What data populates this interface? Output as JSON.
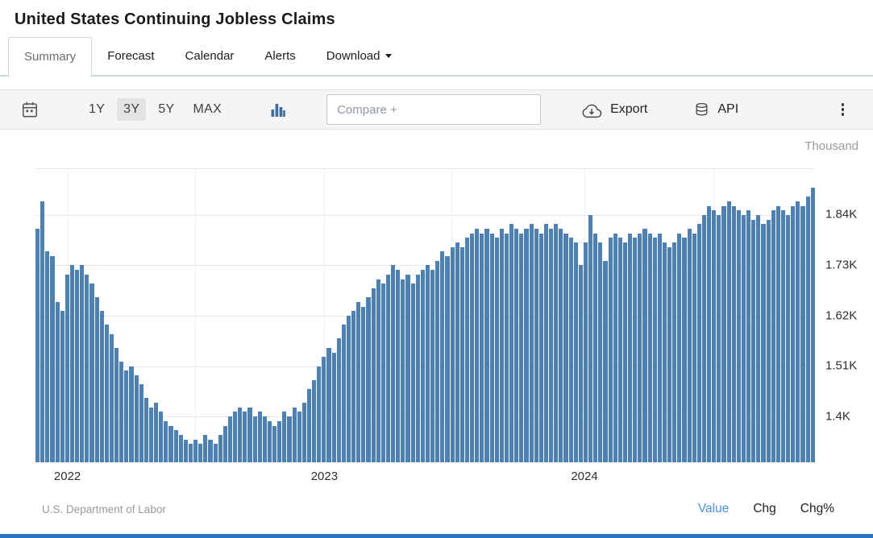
{
  "page": {
    "title": "United States Continuing Jobless Claims"
  },
  "tabs": [
    {
      "label": "Summary",
      "active": true
    },
    {
      "label": "Forecast",
      "active": false
    },
    {
      "label": "Calendar",
      "active": false
    },
    {
      "label": "Alerts",
      "active": false
    },
    {
      "label": "Download",
      "active": false,
      "has_caret": true
    }
  ],
  "toolbar": {
    "ranges": [
      {
        "label": "1Y",
        "selected": false
      },
      {
        "label": "3Y",
        "selected": true
      },
      {
        "label": "5Y",
        "selected": false
      },
      {
        "label": "MAX",
        "selected": false
      }
    ],
    "compare_placeholder": "Compare +",
    "export_label": "Export",
    "api_label": "API"
  },
  "icons": {
    "calendar": "calendar-icon",
    "chart_type": "bar-chart-type-icon",
    "export": "cloud-download-icon",
    "api": "database-icon",
    "menu": "kebab-menu-icon",
    "download_caret": "caret-down-icon"
  },
  "chart_data": {
    "type": "bar",
    "title": "United States Continuing Jobless Claims",
    "series_name": "Continuing Jobless Claims",
    "unit_label": "Thousand",
    "bar_color": "#4d80b5",
    "grid": true,
    "legend_position": "none",
    "ylim": [
      1.3,
      1.94
    ],
    "y_ticks": [
      {
        "label": "1.84K",
        "value": 1.84
      },
      {
        "label": "1.73K",
        "value": 1.73
      },
      {
        "label": "1.62K",
        "value": 1.62
      },
      {
        "label": "1.51K",
        "value": 1.51
      },
      {
        "label": "1.4K",
        "value": 1.4
      }
    ],
    "x_ticks": [
      {
        "label": "2022",
        "pos": 0.041
      },
      {
        "label": "2023",
        "pos": 0.371
      },
      {
        "label": "2024",
        "pos": 0.705
      }
    ],
    "grid_x": [
      0.041,
      0.205,
      0.371,
      0.534,
      0.705,
      0.871
    ],
    "x_unit": "weekly",
    "values": [
      1.81,
      1.87,
      1.76,
      1.75,
      1.65,
      1.63,
      1.71,
      1.73,
      1.72,
      1.73,
      1.71,
      1.69,
      1.66,
      1.63,
      1.6,
      1.58,
      1.55,
      1.52,
      1.5,
      1.51,
      1.49,
      1.47,
      1.44,
      1.42,
      1.43,
      1.41,
      1.39,
      1.38,
      1.37,
      1.36,
      1.35,
      1.34,
      1.35,
      1.34,
      1.36,
      1.35,
      1.34,
      1.36,
      1.38,
      1.4,
      1.41,
      1.42,
      1.41,
      1.42,
      1.4,
      1.41,
      1.4,
      1.39,
      1.38,
      1.39,
      1.41,
      1.4,
      1.42,
      1.41,
      1.43,
      1.46,
      1.48,
      1.51,
      1.53,
      1.55,
      1.54,
      1.57,
      1.6,
      1.62,
      1.63,
      1.65,
      1.64,
      1.66,
      1.68,
      1.7,
      1.69,
      1.71,
      1.73,
      1.72,
      1.7,
      1.71,
      1.69,
      1.71,
      1.72,
      1.73,
      1.72,
      1.74,
      1.76,
      1.75,
      1.77,
      1.78,
      1.77,
      1.79,
      1.8,
      1.81,
      1.8,
      1.81,
      1.8,
      1.79,
      1.81,
      1.8,
      1.82,
      1.81,
      1.8,
      1.81,
      1.82,
      1.81,
      1.8,
      1.82,
      1.81,
      1.82,
      1.81,
      1.8,
      1.79,
      1.78,
      1.73,
      1.78,
      1.84,
      1.8,
      1.78,
      1.74,
      1.79,
      1.8,
      1.79,
      1.78,
      1.8,
      1.79,
      1.8,
      1.81,
      1.8,
      1.79,
      1.8,
      1.78,
      1.77,
      1.78,
      1.8,
      1.79,
      1.81,
      1.8,
      1.82,
      1.84,
      1.86,
      1.85,
      1.84,
      1.86,
      1.87,
      1.86,
      1.85,
      1.84,
      1.85,
      1.83,
      1.84,
      1.82,
      1.83,
      1.85,
      1.86,
      1.85,
      1.84,
      1.86,
      1.87,
      1.86,
      1.88,
      1.9
    ]
  },
  "footer": {
    "source": "U.S. Department of Labor",
    "modes": [
      {
        "label": "Value",
        "active": true
      },
      {
        "label": "Chg",
        "active": false
      },
      {
        "label": "Chg%",
        "active": false
      }
    ]
  },
  "colors": {
    "accent_blue": "#4a90e2",
    "bottom_bar": "#2a72c3",
    "bar_fill": "#4d80b5"
  }
}
